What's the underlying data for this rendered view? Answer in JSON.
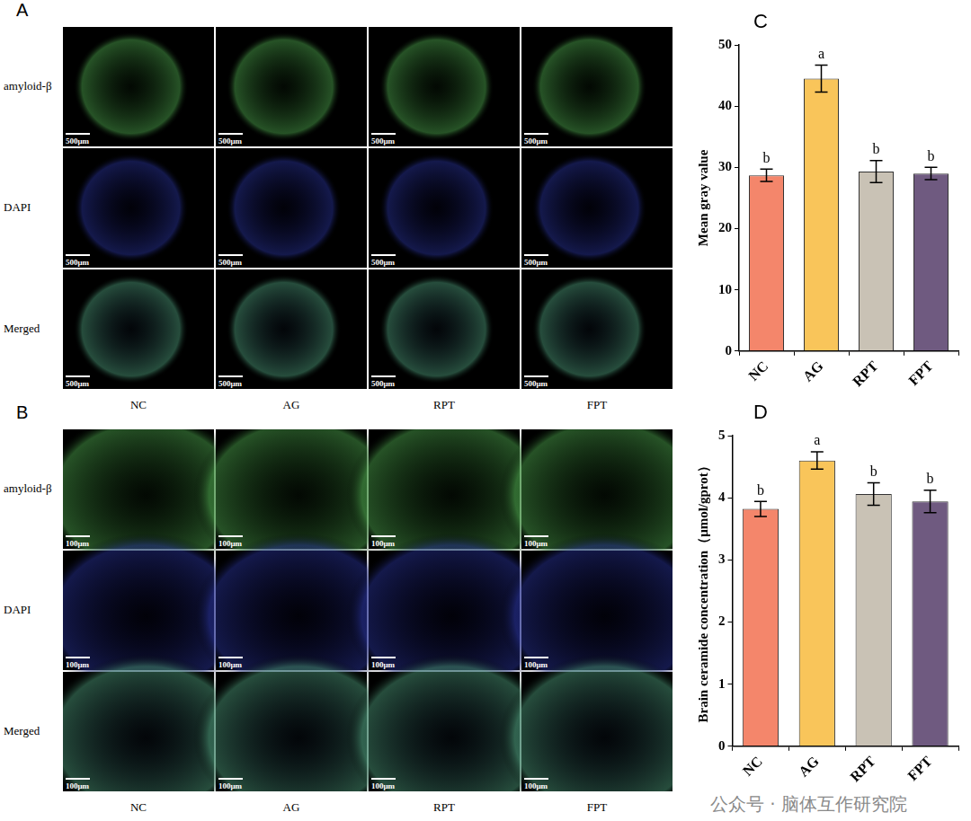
{
  "image_panels": [
    {
      "letter": "A",
      "rows": [
        "amyloid-β",
        "DAPI",
        "Merged"
      ],
      "columns": [
        "NC",
        "AG",
        "RPT",
        "FPT"
      ],
      "scale_bar": "500μm"
    },
    {
      "letter": "B",
      "rows": [
        "amyloid-β",
        "DAPI",
        "Merged"
      ],
      "columns": [
        "NC",
        "AG",
        "RPT",
        "FPT"
      ],
      "scale_bar": "100μm"
    }
  ],
  "chart_data": [
    {
      "type": "bar",
      "panel_label": "C",
      "y_label": "Mean gray value",
      "categories": [
        "NC",
        "AG",
        "RPT",
        "FPT"
      ],
      "values": [
        28.7,
        44.5,
        29.3,
        29.0
      ],
      "errors": [
        1.0,
        2.2,
        1.8,
        1.0
      ],
      "significance_labels": [
        "b",
        "a",
        "b",
        "b"
      ],
      "colors": [
        "#f4866b",
        "#f9c55a",
        "#c9c2b5",
        "#6f5a80"
      ],
      "ylim": [
        0,
        50
      ],
      "yticks": [
        0,
        10,
        20,
        30,
        40,
        50
      ],
      "grid": false
    },
    {
      "type": "bar",
      "panel_label": "D",
      "y_label": "Brain ceramide concentration（μmol/gprot）",
      "categories": [
        "NC",
        "AG",
        "RPT",
        "FPT"
      ],
      "values": [
        3.82,
        4.6,
        4.06,
        3.94
      ],
      "errors": [
        0.12,
        0.14,
        0.18,
        0.18
      ],
      "significance_labels": [
        "b",
        "a",
        "b",
        "b"
      ],
      "colors": [
        "#f4866b",
        "#f9c55a",
        "#c9c2b5",
        "#6f5a80"
      ],
      "ylim": [
        0,
        5
      ],
      "yticks": [
        0,
        1,
        2,
        3,
        4,
        5
      ],
      "grid": false
    }
  ],
  "watermark": "公众号 · 脑体互作研究院"
}
